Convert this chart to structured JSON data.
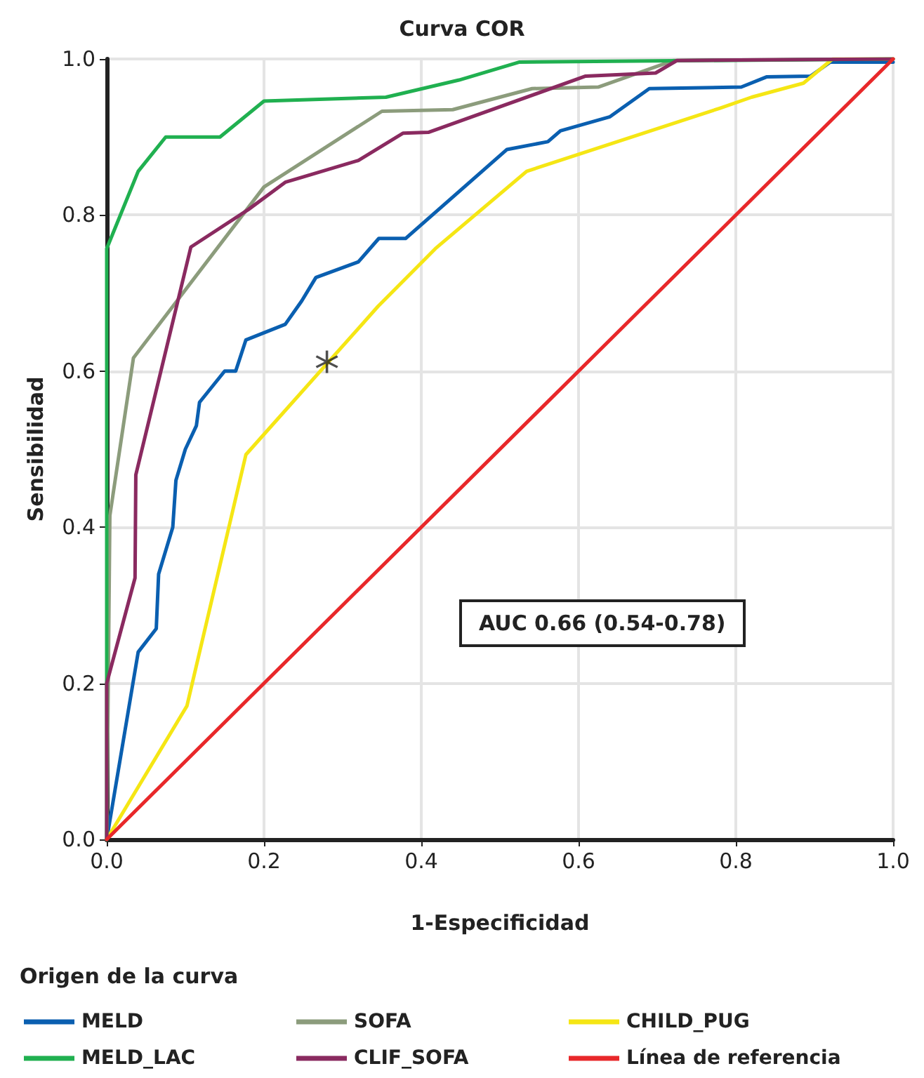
{
  "chart_data": {
    "type": "line",
    "title": "Curva COR",
    "xlabel": "1-Especificidad",
    "ylabel": "Sensibilidad",
    "legend_title": "Origen de la curva",
    "annotations": [
      "AUC 0.66 (0.54-0.78)"
    ],
    "xlim": [
      0,
      1
    ],
    "ylim": [
      0,
      1
    ],
    "xticks": [
      {
        "value": 0,
        "label": "0.0"
      },
      {
        "value": 0.2,
        "label": "0.2"
      },
      {
        "value": 0.4,
        "label": "0.4"
      },
      {
        "value": 0.6,
        "label": "0.6"
      },
      {
        "value": 0.8,
        "label": "0.8"
      },
      {
        "value": 1,
        "label": "1.0"
      }
    ],
    "yticks": [
      {
        "value": 0,
        "label": "0.0"
      },
      {
        "value": 0.2,
        "label": "0.2"
      },
      {
        "value": 0.4,
        "label": "0.4"
      },
      {
        "value": 0.6,
        "label": "0.6"
      },
      {
        "value": 0.8,
        "label": "0.8"
      },
      {
        "value": 1,
        "label": "1.0"
      }
    ],
    "grid": true,
    "legend": "bottom left",
    "marker": "none",
    "line_style": "solid",
    "series": [
      {
        "name": "MELD",
        "color": "#0a5fb0",
        "x": [
          0,
          0.04,
          0.063,
          0.066,
          0.084,
          0.088,
          0.1,
          0.114,
          0.118,
          0.15,
          0.164,
          0.177,
          0.227,
          0.248,
          0.266,
          0.32,
          0.346,
          0.38,
          0.509,
          0.561,
          0.577,
          0.64,
          0.69,
          0.807,
          0.839,
          0.895,
          0.92,
          1
        ],
        "values": [
          0,
          0.24,
          0.27,
          0.34,
          0.4,
          0.46,
          0.5,
          0.53,
          0.56,
          0.6,
          0.6,
          0.64,
          0.66,
          0.69,
          0.72,
          0.74,
          0.77,
          0.77,
          0.884,
          0.894,
          0.908,
          0.926,
          0.962,
          0.964,
          0.977,
          0.978,
          0.996,
          0.996
        ]
      },
      {
        "name": "SOFA",
        "color": "#8c9c7c",
        "x": [
          0,
          0.004,
          0.034,
          0.2,
          0.35,
          0.44,
          0.541,
          0.625,
          0.721,
          1
        ],
        "values": [
          0,
          0.415,
          0.617,
          0.836,
          0.933,
          0.935,
          0.962,
          0.964,
          0.998,
          1
        ]
      },
      {
        "name": "CHILD_PUG",
        "color": "#f5e614",
        "x": [
          0,
          0.102,
          0.177,
          0.345,
          0.418,
          0.534,
          0.78,
          0.82,
          0.886,
          0.923,
          1
        ],
        "values": [
          0,
          0.171,
          0.493,
          0.683,
          0.757,
          0.856,
          0.937,
          0.951,
          0.969,
          1,
          1
        ]
      },
      {
        "name": "MELD_LAC",
        "color": "#20b050",
        "x": [
          0,
          0,
          0.04,
          0.075,
          0.144,
          0.2,
          0.355,
          0.448,
          0.525,
          1
        ],
        "values": [
          0,
          0.757,
          0.856,
          0.9,
          0.9,
          0.946,
          0.951,
          0.973,
          0.996,
          1
        ]
      },
      {
        "name": "CLIF_SOFA",
        "color": "#8a2a60",
        "x": [
          0,
          0,
          0.036,
          0.037,
          0.107,
          0.18,
          0.227,
          0.32,
          0.377,
          0.409,
          0.609,
          0.698,
          0.725,
          1
        ],
        "values": [
          0,
          0.2,
          0.335,
          0.467,
          0.759,
          0.807,
          0.842,
          0.87,
          0.905,
          0.906,
          0.978,
          0.982,
          0.998,
          1
        ]
      },
      {
        "name": "Línea de referencia",
        "color": "#e8282a",
        "x": [
          0,
          1
        ],
        "values": [
          0,
          1
        ]
      },
      {
        "type": "scatter",
        "marker": "cross",
        "color": "#222222",
        "x": [
          0.28
        ],
        "values": [
          0.612
        ]
      }
    ]
  }
}
